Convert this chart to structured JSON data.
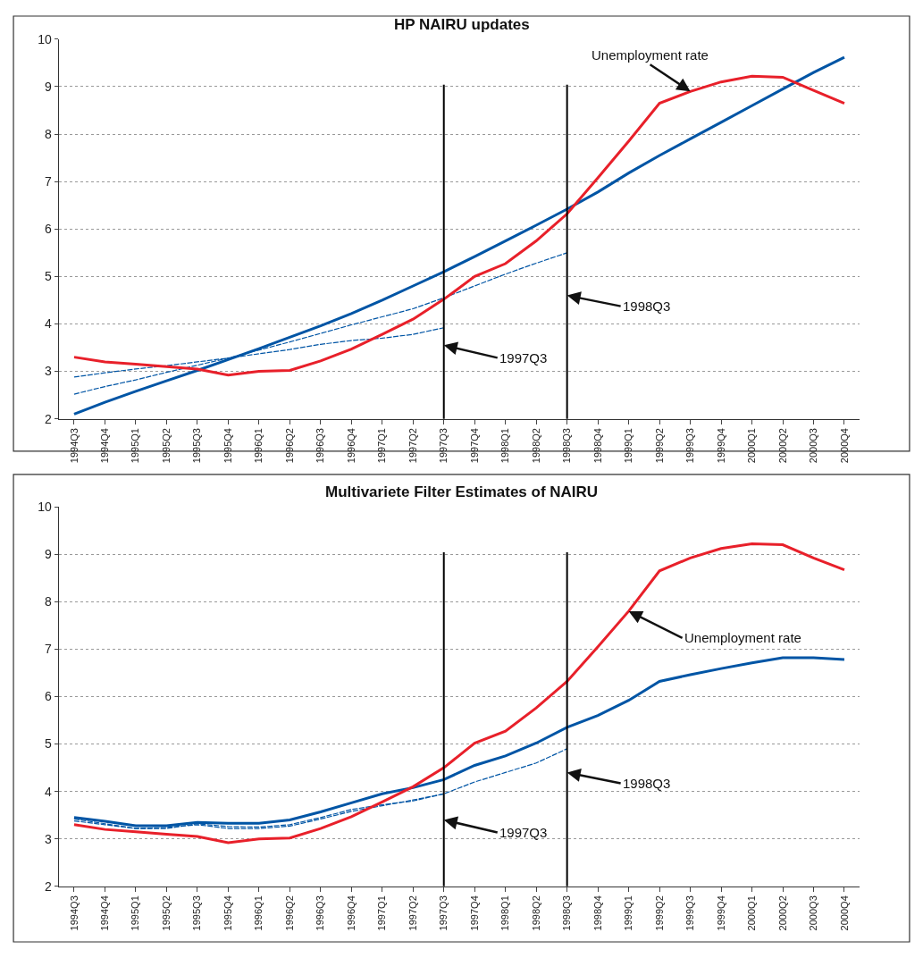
{
  "chart_data": [
    {
      "type": "line",
      "title": "HP NAIRU updates",
      "categories": [
        "1994Q3",
        "1994Q4",
        "1995Q1",
        "1995Q2",
        "1995Q3",
        "1995Q4",
        "1996Q1",
        "1996Q2",
        "1996Q3",
        "1996Q4",
        "1997Q1",
        "1997Q2",
        "1997Q3",
        "1997Q4",
        "1998Q1",
        "1998Q2",
        "1998Q3",
        "1998Q4",
        "1999Q1",
        "1999Q2",
        "1999Q3",
        "1999Q4",
        "2000Q1",
        "2000Q2",
        "2000Q3",
        "2000Q4"
      ],
      "series": [
        {
          "color": "#0055a5",
          "line_style": "dashed",
          "values": [
            2.88,
            2.97,
            3.05,
            3.12,
            3.2,
            3.28,
            3.37,
            3.46,
            3.57,
            3.65,
            3.7,
            3.78,
            3.92,
            null,
            null,
            null,
            null,
            null,
            null,
            null,
            null,
            null,
            null,
            null,
            null,
            null
          ]
        },
        {
          "color": "#0055a5",
          "line_style": "dashed",
          "values": [
            2.52,
            2.68,
            2.82,
            2.98,
            3.13,
            3.28,
            3.45,
            3.62,
            3.8,
            3.98,
            4.15,
            4.32,
            4.55,
            4.8,
            5.05,
            5.28,
            5.5,
            null,
            null,
            null,
            null,
            null,
            null,
            null,
            null,
            null
          ]
        },
        {
          "color": "#0055a5",
          "line_style": "solid",
          "values": [
            2.1,
            2.35,
            2.58,
            2.8,
            3.02,
            3.25,
            3.48,
            3.72,
            3.96,
            4.22,
            4.5,
            4.8,
            5.1,
            5.42,
            5.75,
            6.08,
            6.42,
            6.78,
            7.18,
            7.55,
            7.9,
            8.25,
            8.6,
            8.95,
            9.3,
            9.62
          ]
        },
        {
          "color": "#e8202a",
          "line_style": "solid",
          "values": [
            3.3,
            3.2,
            3.15,
            3.1,
            3.05,
            2.92,
            3.0,
            3.02,
            3.22,
            3.47,
            3.78,
            4.1,
            4.52,
            5.0,
            5.27,
            5.75,
            6.32,
            7.08,
            7.85,
            8.65,
            8.9,
            9.1,
            9.22,
            9.2,
            8.92,
            8.65
          ]
        }
      ],
      "ylim": [
        2,
        10
      ],
      "yticks": [
        2,
        3,
        4,
        5,
        6,
        7,
        8,
        9,
        10
      ],
      "grid": "y",
      "marker": "none",
      "ref_lines": [
        {
          "axis": "x",
          "value": "1997Q3",
          "color": "#000000"
        },
        {
          "axis": "x",
          "value": "1998Q3",
          "color": "#000000"
        }
      ],
      "annotations": [
        {
          "text": "Unemployment rate",
          "x": "1999Q3",
          "y": 8.9
        },
        {
          "text": "1997Q3",
          "x": "1997Q3",
          "y": 3.55
        },
        {
          "text": "1998Q3",
          "x": "1998Q3",
          "y": 4.6
        }
      ]
    },
    {
      "type": "line",
      "title": "Multivariete Filter Estimates of NAIRU",
      "categories": [
        "1994Q3",
        "1994Q4",
        "1995Q1",
        "1995Q2",
        "1995Q3",
        "1995Q4",
        "1996Q1",
        "1996Q2",
        "1996Q3",
        "1996Q4",
        "1997Q1",
        "1997Q2",
        "1997Q3",
        "1997Q4",
        "1998Q1",
        "1998Q2",
        "1998Q3",
        "1998Q4",
        "1999Q1",
        "1999Q2",
        "1999Q3",
        "1999Q4",
        "2000Q1",
        "2000Q2",
        "2000Q3",
        "2000Q4"
      ],
      "series": [
        {
          "color": "#0055a5",
          "line_style": "dashed",
          "values": [
            3.38,
            3.3,
            3.22,
            3.24,
            3.3,
            3.22,
            3.22,
            3.27,
            3.42,
            3.58,
            3.7,
            3.82,
            3.95,
            null,
            null,
            null,
            null,
            null,
            null,
            null,
            null,
            null,
            null,
            null,
            null,
            null
          ]
        },
        {
          "color": "#0055a5",
          "line_style": "dashed",
          "values": [
            3.42,
            3.32,
            3.22,
            3.22,
            3.32,
            3.26,
            3.25,
            3.3,
            3.45,
            3.62,
            3.72,
            3.8,
            3.95,
            4.2,
            4.4,
            4.6,
            4.9,
            null,
            null,
            null,
            null,
            null,
            null,
            null,
            null,
            null
          ]
        },
        {
          "color": "#0055a5",
          "line_style": "solid",
          "values": [
            3.45,
            3.37,
            3.28,
            3.28,
            3.35,
            3.33,
            3.33,
            3.4,
            3.57,
            3.76,
            3.95,
            4.08,
            4.25,
            4.55,
            4.75,
            5.02,
            5.35,
            5.6,
            5.92,
            6.32,
            6.46,
            6.59,
            6.71,
            6.82,
            6.82,
            6.78
          ]
        },
        {
          "color": "#e8202a",
          "line_style": "solid",
          "values": [
            3.3,
            3.2,
            3.15,
            3.1,
            3.05,
            2.92,
            3.0,
            3.02,
            3.22,
            3.47,
            3.78,
            4.1,
            4.5,
            5.02,
            5.27,
            5.76,
            6.32,
            7.05,
            7.8,
            8.65,
            8.92,
            9.12,
            9.22,
            9.2,
            8.92,
            8.67
          ]
        }
      ],
      "ylim": [
        2,
        10
      ],
      "yticks": [
        2,
        3,
        4,
        5,
        6,
        7,
        8,
        9,
        10
      ],
      "grid": "y",
      "marker": "none",
      "ref_lines": [
        {
          "axis": "x",
          "value": "1997Q3",
          "color": "#000000"
        },
        {
          "axis": "x",
          "value": "1998Q3",
          "color": "#000000"
        }
      ],
      "annotations": [
        {
          "text": "Unemployment rate",
          "x": "1999Q1",
          "y": 7.8
        },
        {
          "text": "1997Q3",
          "x": "1997Q3",
          "y": 3.4
        },
        {
          "text": "1998Q3",
          "x": "1998Q3",
          "y": 4.4
        }
      ]
    }
  ]
}
